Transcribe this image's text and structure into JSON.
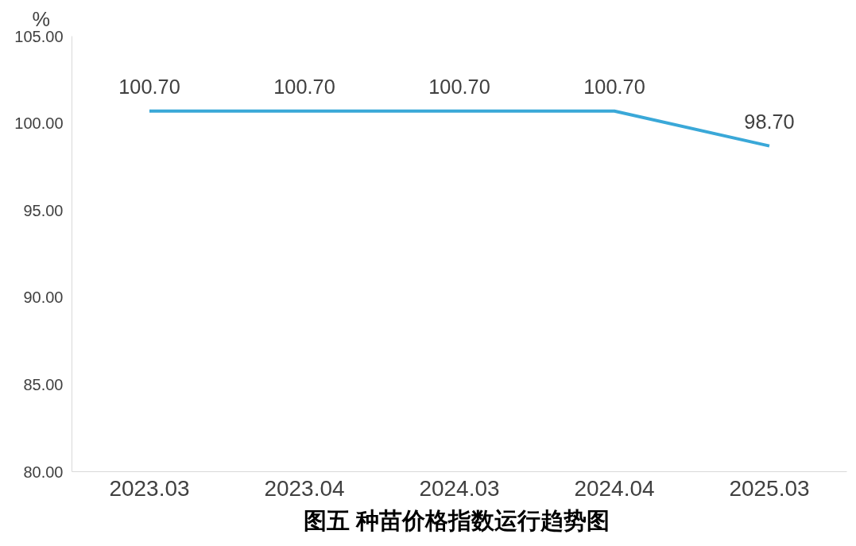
{
  "chart_data": {
    "type": "line",
    "title": "图五  种苗价格指数运行趋势图",
    "ylabel": "%",
    "categories": [
      "2023.03",
      "2023.04",
      "2024.03",
      "2024.04",
      "2025.03"
    ],
    "series": [
      {
        "color": "#3aa8d8",
        "values": [
          100.7,
          100.7,
          100.7,
          100.7,
          98.7
        ],
        "value_labels": [
          "100.70",
          "100.70",
          "100.70",
          "100.70",
          "98.70"
        ]
      }
    ],
    "ylim": [
      80,
      105
    ],
    "yticks": [
      {
        "value": 80,
        "label": "80.00"
      },
      {
        "value": 85,
        "label": "85.00"
      },
      {
        "value": 90,
        "label": "90.00"
      },
      {
        "value": 95,
        "label": "95.00"
      },
      {
        "value": 100,
        "label": "100.00"
      },
      {
        "value": 105,
        "label": "105.00"
      }
    ],
    "grid": false,
    "marker": "none",
    "line_style": "solid"
  }
}
